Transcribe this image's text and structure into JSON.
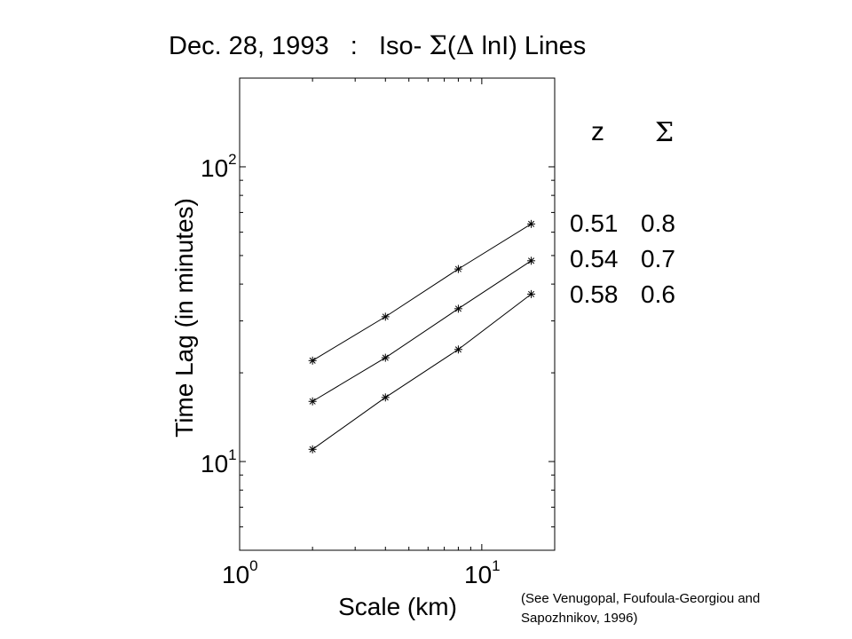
{
  "chart_data": {
    "type": "line",
    "title_parts": {
      "prefix": "Dec. 28, 1993   :   Iso- ",
      "sigma": "Σ",
      "open": "(",
      "delta": "Δ",
      "suffix": " lnI) Lines"
    },
    "xlabel": "Scale (km)",
    "ylabel": "Time Lag (in minutes)",
    "x_scale": "log",
    "y_scale": "log",
    "xlim": [
      1,
      20
    ],
    "ylim": [
      5,
      200
    ],
    "x_ticks": [
      {
        "base": "10",
        "exp": "0",
        "value": 1
      },
      {
        "base": "10",
        "exp": "1",
        "value": 10
      }
    ],
    "y_ticks": [
      {
        "base": "10",
        "exp": "2",
        "value": 100
      },
      {
        "base": "10",
        "exp": "1",
        "value": 10
      }
    ],
    "grid": false,
    "marker": "asterisk",
    "series": [
      {
        "x": [
          2,
          4,
          8,
          16
        ],
        "y": [
          22,
          31,
          45,
          64
        ]
      },
      {
        "x": [
          2,
          4,
          8,
          16
        ],
        "y": [
          16,
          22.5,
          33,
          48
        ]
      },
      {
        "x": [
          2,
          4,
          8,
          16
        ],
        "y": [
          11,
          16.5,
          24,
          37
        ]
      }
    ],
    "legend": {
      "header_z": "z",
      "header_sigma": "Σ",
      "rows": [
        {
          "z": "0.51",
          "sigma": "0.8"
        },
        {
          "z": "0.54",
          "sigma": "0.7"
        },
        {
          "z": "0.58",
          "sigma": "0.6"
        }
      ]
    }
  },
  "citation": {
    "line1": "(See Venugopal, Foufoula-Georgiou and",
    "line2": "Sapozhnikov, 1996)"
  }
}
